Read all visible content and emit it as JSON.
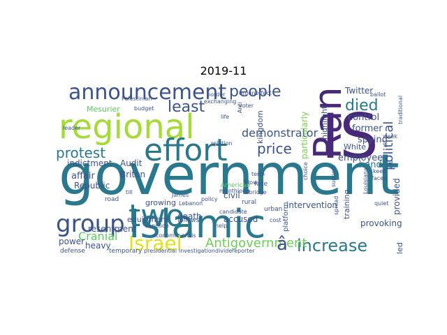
{
  "title": "2019-11",
  "words": [
    {
      "text": "government",
      "color": "#2a788e"
    },
    {
      "text": "Islamic",
      "color": "#2a788e"
    },
    {
      "text": "IS",
      "color": "#482878"
    },
    {
      "text": "regional",
      "color": "#a5db36"
    },
    {
      "text": "Ran",
      "color": "#482878"
    },
    {
      "text": "effort",
      "color": "#2a788e"
    },
    {
      "text": "two",
      "color": "#2a788e"
    },
    {
      "text": "announcement",
      "color": "#3b528b"
    },
    {
      "text": "group",
      "color": "#3b528b"
    },
    {
      "text": "Israel",
      "color": "#dde318"
    },
    {
      "text": "increase",
      "color": "#2a788e"
    },
    {
      "text": "people",
      "color": "#3b528b"
    },
    {
      "text": "price",
      "color": "#3b528b"
    },
    {
      "text": "least",
      "color": "#3b528b"
    },
    {
      "text": "protest",
      "color": "#2a788e"
    },
    {
      "text": "died",
      "color": "#2a788e"
    },
    {
      "text": "political",
      "color": "#3b528b"
    },
    {
      "text": "Antigovernment",
      "color": "#6ece58"
    },
    {
      "text": "â",
      "color": "#3b528b"
    },
    {
      "text": "Cranial",
      "color": "#5ec962"
    },
    {
      "text": "demonstrator",
      "color": "#3b528b"
    },
    {
      "text": "Twitter",
      "color": "#3b528b"
    },
    {
      "text": "control",
      "color": "#3b528b"
    },
    {
      "text": "former",
      "color": "#3b528b"
    },
    {
      "text": "spying",
      "color": "#3b528b"
    },
    {
      "text": "handed",
      "color": "#2a788e"
    },
    {
      "text": "employee",
      "color": "#3b528b"
    },
    {
      "text": "provided",
      "color": "#3b528b"
    },
    {
      "text": "intervention",
      "color": "#3b528b"
    },
    {
      "text": "provoking",
      "color": "#3b528b"
    },
    {
      "text": "accused",
      "color": "#3b528b"
    },
    {
      "text": "training",
      "color": "#3b528b"
    },
    {
      "text": "highlight",
      "color": "#3b528b"
    },
    {
      "text": "particularly",
      "color": "#7ad151"
    },
    {
      "text": "kingdom",
      "color": "#3b528b"
    },
    {
      "text": "White",
      "color": "#3b528b"
    },
    {
      "text": "affair",
      "color": "#3b528b"
    },
    {
      "text": "Republic",
      "color": "#3b528b"
    },
    {
      "text": "Briton",
      "color": "#3b528b"
    },
    {
      "text": "indictment",
      "color": "#3b528b"
    },
    {
      "text": "Audit",
      "color": "#3b528b"
    },
    {
      "text": "Mesurier",
      "color": "#5ec962"
    },
    {
      "text": "resentment",
      "color": "#3b528b"
    },
    {
      "text": "heavy",
      "color": "#3b528b"
    },
    {
      "text": "power",
      "color": "#3b528b"
    },
    {
      "text": "death",
      "color": "#3b528b"
    },
    {
      "text": "growing",
      "color": "#3b528b"
    },
    {
      "text": "civil",
      "color": "#3b528b"
    },
    {
      "text": "equipment",
      "color": "#3b528b"
    },
    {
      "text": "platform",
      "color": "#3b528b"
    },
    {
      "text": "temporary",
      "color": "#3b528b"
    },
    {
      "text": "defense",
      "color": "#3b528b"
    },
    {
      "text": "led",
      "color": "#3b528b"
    },
    {
      "text": "American",
      "color": "#5ec962"
    },
    {
      "text": "road",
      "color": "#3b528b"
    },
    {
      "text": "rural",
      "color": "#3b528b"
    },
    {
      "text": "follows",
      "color": "#3b528b"
    },
    {
      "text": "urban",
      "color": "#3b528b"
    },
    {
      "text": "James",
      "color": "#3b528b"
    },
    {
      "text": "Lebanon",
      "color": "#3b528b"
    },
    {
      "text": "exchanging",
      "color": "#3b528b"
    },
    {
      "text": "voter",
      "color": "#3b528b"
    },
    {
      "text": "candidate",
      "color": "#3b528b"
    },
    {
      "text": "quiet",
      "color": "#3b528b"
    },
    {
      "text": "support",
      "color": "#3b528b"
    },
    {
      "text": "choice",
      "color": "#3b528b"
    },
    {
      "text": "ballot",
      "color": "#3b528b"
    },
    {
      "text": "sanction",
      "color": "#3b528b"
    },
    {
      "text": "budget",
      "color": "#3b528b"
    },
    {
      "text": "border",
      "color": "#3b528b"
    },
    {
      "text": "relation",
      "color": "#3b528b"
    },
    {
      "text": "presidential",
      "color": "#3b528b"
    },
    {
      "text": "investigation",
      "color": "#3b528b"
    },
    {
      "text": "reporter",
      "color": "#3b528b"
    },
    {
      "text": "divide",
      "color": "#3b528b"
    },
    {
      "text": "economic",
      "color": "#3b528b"
    },
    {
      "text": "crisis",
      "color": "#3b528b"
    },
    {
      "text": "bridge",
      "color": "#3b528b"
    },
    {
      "text": "Louisiana",
      "color": "#3b528b"
    },
    {
      "text": "Palestinian",
      "color": "#3b528b"
    },
    {
      "text": "leader",
      "color": "#3b528b"
    },
    {
      "text": "urgent",
      "color": "#3b528b"
    },
    {
      "text": "effect",
      "color": "#3b528b"
    },
    {
      "text": "life",
      "color": "#3b528b"
    },
    {
      "text": "face",
      "color": "#3b528b"
    },
    {
      "text": "till",
      "color": "#3b528b"
    },
    {
      "text": "Anti",
      "color": "#3b528b"
    },
    {
      "text": "policy",
      "color": "#3b528b"
    },
    {
      "text": "term",
      "color": "#3b528b"
    },
    {
      "text": "blow",
      "color": "#3b528b"
    },
    {
      "text": "monthlong",
      "color": "#3b528b"
    },
    {
      "text": "help",
      "color": "#3b528b"
    },
    {
      "text": "cost",
      "color": "#3b528b"
    },
    {
      "text": "keep",
      "color": "#3b528b"
    },
    {
      "text": "faced",
      "color": "#3b528b"
    },
    {
      "text": "spread",
      "color": "#3b528b"
    },
    {
      "text": "week",
      "color": "#3b528b"
    },
    {
      "text": "traditional",
      "color": "#3b528b"
    }
  ]
}
